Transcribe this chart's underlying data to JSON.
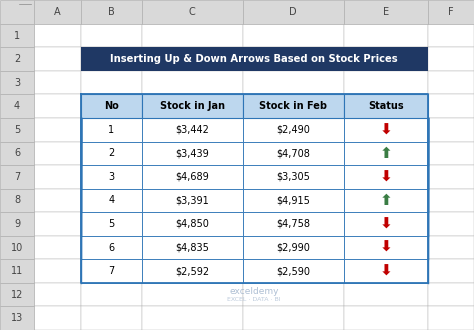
{
  "title": "Inserting Up & Down Arrows Based on Stock Prices",
  "title_bg": "#1F3864",
  "title_color": "#FFFFFF",
  "header_bg": "#BDD7EE",
  "header_color": "#000000",
  "row_bg": "#FFFFFF",
  "col_labels": [
    "No",
    "Stock in Jan",
    "Stock in Feb",
    "Status"
  ],
  "rows": [
    [
      1,
      "$3,442",
      "$2,490",
      "down"
    ],
    [
      2,
      "$3,439",
      "$4,708",
      "up"
    ],
    [
      3,
      "$4,689",
      "$3,305",
      "down"
    ],
    [
      4,
      "$3,391",
      "$4,915",
      "up"
    ],
    [
      5,
      "$4,850",
      "$4,758",
      "down"
    ],
    [
      6,
      "$4,835",
      "$2,990",
      "down"
    ],
    [
      7,
      "$2,592",
      "$2,590",
      "down"
    ]
  ],
  "arrow_up_color": "#3A7D44",
  "arrow_down_color": "#C00000",
  "excel_bg": "#FFFFFF",
  "excel_header_bg": "#D9D9D9",
  "excel_border_color": "#B0B0B0",
  "table_border_color": "#2E75B6",
  "row_line_color": "#9DC3E6",
  "watermark_color": "#A0B4CC",
  "col_labels_excel": [
    "A",
    "B",
    "C",
    "D",
    "E",
    "F"
  ],
  "row_numbers": [
    1,
    2,
    3,
    4,
    5,
    6,
    7,
    8,
    9,
    10,
    11,
    12,
    13
  ],
  "figsize": [
    4.74,
    3.3
  ],
  "dpi": 100
}
